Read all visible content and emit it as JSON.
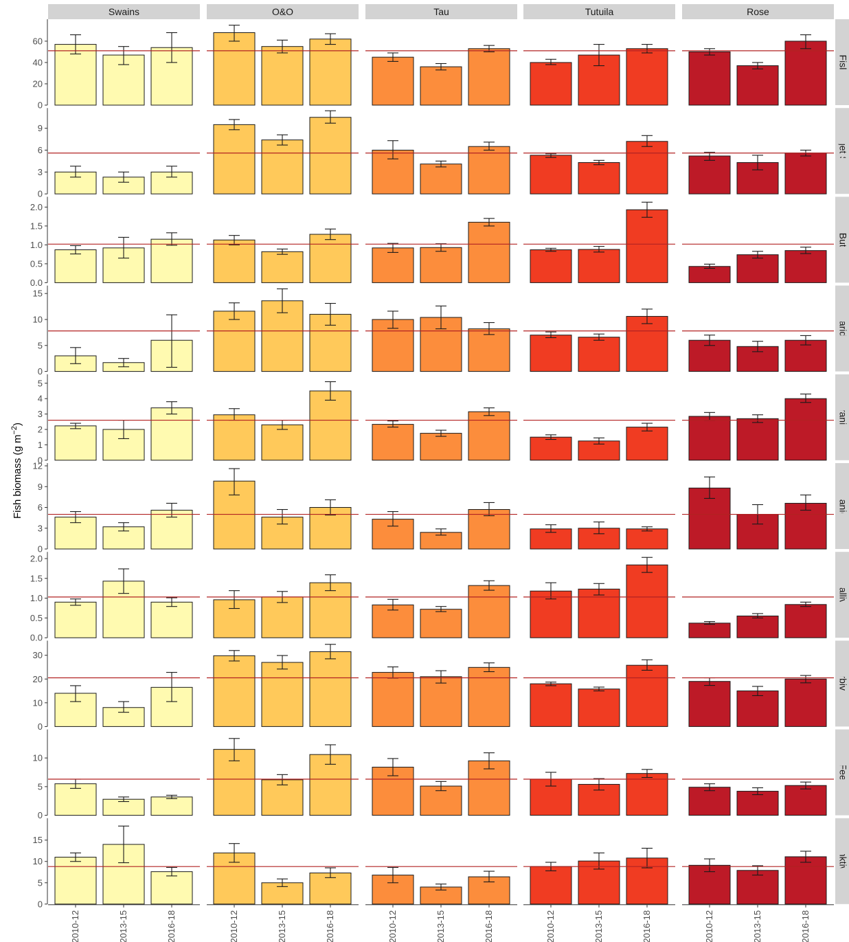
{
  "chart_data": {
    "type": "bar",
    "facet_layout": "grid",
    "ylabel": "Fish biomass (g m",
    "ylabel_superscript": "−2",
    "ylabel_close": ")",
    "regions": [
      "Swains",
      "O&O",
      "Tau",
      "Tutuila",
      "Rose"
    ],
    "categories": [
      "2010-12",
      "2013-15",
      "2016-18"
    ],
    "region_colors": [
      "#FFFAB0",
      "#FFC95A",
      "#FC8D3C",
      "#F03C22",
      "#BD1A27"
    ],
    "reference_line_color": "#B22222",
    "bar_edge_color": "#1a1a1a",
    "strip_color": "#D3D3D3",
    "rows": [
      {
        "label": "All Fishes",
        "ylim": [
          0,
          78
        ],
        "ticks": [
          0,
          20,
          40,
          60
        ],
        "tick_labels": [
          "0",
          "20",
          "40",
          "60"
        ],
        "reference": 51,
        "values": [
          [
            57,
            47,
            54
          ],
          [
            68,
            55,
            62
          ],
          [
            45,
            36,
            53
          ],
          [
            40,
            47,
            53
          ],
          [
            50,
            37,
            60
          ]
        ],
        "errors": [
          [
            [
              48,
              66
            ],
            [
              38,
              55
            ],
            [
              40,
              68
            ]
          ],
          [
            [
              60,
              75
            ],
            [
              49,
              61
            ],
            [
              57,
              67
            ]
          ],
          [
            [
              41,
              49
            ],
            [
              33,
              39
            ],
            [
              50,
              56
            ]
          ],
          [
            [
              38,
              43
            ],
            [
              37,
              57
            ],
            [
              49,
              57
            ]
          ],
          [
            [
              47,
              53
            ],
            [
              34,
              40
            ],
            [
              53,
              66
            ]
          ]
        ]
      },
      {
        "label": "l-Large Target Surgeonfish",
        "ylim": [
          0,
          11.4
        ],
        "ticks": [
          0,
          3,
          6,
          9
        ],
        "tick_labels": [
          "0",
          "3",
          "6",
          "9"
        ],
        "reference": 5.6,
        "values": [
          [
            3.0,
            2.3,
            3.0
          ],
          [
            9.5,
            7.4,
            10.5
          ],
          [
            6.0,
            4.1,
            6.5
          ],
          [
            5.3,
            4.3,
            7.2
          ],
          [
            5.2,
            4.3,
            5.6
          ]
        ],
        "errors": [
          [
            [
              2.3,
              3.8
            ],
            [
              1.6,
              3.0
            ],
            [
              2.3,
              3.8
            ]
          ],
          [
            [
              8.8,
              10.2
            ],
            [
              6.7,
              8.1
            ],
            [
              9.7,
              11.4
            ]
          ],
          [
            [
              4.8,
              7.3
            ],
            [
              3.7,
              4.5
            ],
            [
              6.0,
              7.1
            ]
          ],
          [
            [
              5.0,
              5.5
            ],
            [
              4.0,
              4.6
            ],
            [
              6.5,
              8.0
            ]
          ],
          [
            [
              4.6,
              5.7
            ],
            [
              3.3,
              5.3
            ],
            [
              5.2,
              6.0
            ]
          ]
        ]
      },
      {
        "label": "Non-PK Butterflyfish",
        "ylim": [
          0,
          2.2
        ],
        "ticks": [
          0,
          0.5,
          1.0,
          1.5,
          2.0
        ],
        "tick_labels": [
          "0.0",
          "0.5",
          "1.0",
          "1.5",
          "2.0"
        ],
        "reference": 1.02,
        "values": [
          [
            0.87,
            0.92,
            1.15
          ],
          [
            1.13,
            0.82,
            1.28
          ],
          [
            0.92,
            0.93,
            1.6
          ],
          [
            0.87,
            0.88,
            1.93
          ],
          [
            0.43,
            0.74,
            0.85
          ]
        ],
        "errors": [
          [
            [
              0.76,
              0.98
            ],
            [
              0.65,
              1.2
            ],
            [
              0.99,
              1.32
            ]
          ],
          [
            [
              1.0,
              1.25
            ],
            [
              0.75,
              0.89
            ],
            [
              1.14,
              1.42
            ]
          ],
          [
            [
              0.8,
              1.04
            ],
            [
              0.83,
              1.03
            ],
            [
              1.5,
              1.7
            ]
          ],
          [
            [
              0.83,
              0.91
            ],
            [
              0.81,
              0.96
            ],
            [
              1.73,
              2.13
            ]
          ],
          [
            [
              0.38,
              0.49
            ],
            [
              0.65,
              0.83
            ],
            [
              0.77,
              0.94
            ]
          ]
        ]
      },
      {
        "label": "Scaridae",
        "ylim": [
          0,
          16
        ],
        "ticks": [
          0,
          5,
          10,
          15
        ],
        "tick_labels": [
          "0",
          "5",
          "10",
          "15"
        ],
        "reference": 7.8,
        "values": [
          [
            3.0,
            1.7,
            6.0
          ],
          [
            11.6,
            13.6,
            11.0
          ],
          [
            10.0,
            10.4,
            8.2
          ],
          [
            7.0,
            6.6,
            10.6
          ],
          [
            6.0,
            4.8,
            6.0
          ]
        ],
        "errors": [
          [
            [
              1.5,
              4.6
            ],
            [
              0.9,
              2.5
            ],
            [
              0.8,
              10.9
            ]
          ],
          [
            [
              10.0,
              13.2
            ],
            [
              11.3,
              15.9
            ],
            [
              8.9,
              13.1
            ]
          ],
          [
            [
              8.3,
              11.6
            ],
            [
              8.2,
              12.6
            ],
            [
              7.1,
              9.4
            ]
          ],
          [
            [
              6.5,
              7.6
            ],
            [
              6.0,
              7.2
            ],
            [
              9.2,
              12.0
            ]
          ],
          [
            [
              5.0,
              7.0
            ],
            [
              3.8,
              5.8
            ],
            [
              5.1,
              6.9
            ]
          ]
        ]
      },
      {
        "label": "Serranidae",
        "ylim": [
          0,
          5.4
        ],
        "ticks": [
          0,
          1,
          2,
          3,
          4,
          5
        ],
        "tick_labels": [
          "0",
          "1",
          "2",
          "3",
          "4",
          "5"
        ],
        "reference": 2.6,
        "values": [
          [
            2.23,
            2.0,
            3.4
          ],
          [
            2.95,
            2.3,
            4.5
          ],
          [
            2.33,
            1.75,
            3.15
          ],
          [
            1.5,
            1.25,
            2.15
          ],
          [
            2.85,
            2.7,
            4.0
          ]
        ],
        "errors": [
          [
            [
              2.05,
              2.4
            ],
            [
              1.4,
              2.6
            ],
            [
              3.0,
              3.8
            ]
          ],
          [
            [
              2.6,
              3.35
            ],
            [
              2.0,
              2.6
            ],
            [
              3.9,
              5.1
            ]
          ],
          [
            [
              2.15,
              2.55
            ],
            [
              1.55,
              1.95
            ],
            [
              2.9,
              3.4
            ]
          ],
          [
            [
              1.35,
              1.65
            ],
            [
              1.05,
              1.45
            ],
            [
              1.9,
              2.4
            ]
          ],
          [
            [
              2.6,
              3.1
            ],
            [
              2.45,
              2.95
            ],
            [
              3.75,
              4.3
            ]
          ]
        ]
      },
      {
        "label": "Lutjanidae",
        "ylim": [
          0,
          12
        ],
        "ticks": [
          0,
          3,
          6,
          9,
          12
        ],
        "tick_labels": [
          "0",
          "3",
          "6",
          "9",
          "12"
        ],
        "reference": 5.0,
        "values": [
          [
            4.6,
            3.2,
            5.6
          ],
          [
            9.8,
            4.6,
            6.0
          ],
          [
            4.3,
            2.4,
            5.7
          ],
          [
            2.9,
            3.0,
            2.9
          ],
          [
            8.8,
            5.0,
            6.6
          ]
        ],
        "errors": [
          [
            [
              3.8,
              5.4
            ],
            [
              2.6,
              3.8
            ],
            [
              4.6,
              6.6
            ]
          ],
          [
            [
              7.8,
              11.6
            ],
            [
              3.6,
              5.7
            ],
            [
              4.9,
              7.1
            ]
          ],
          [
            [
              3.3,
              5.4
            ],
            [
              2.0,
              2.9
            ],
            [
              4.8,
              6.7
            ]
          ],
          [
            [
              2.4,
              3.5
            ],
            [
              2.2,
              3.9
            ],
            [
              2.6,
              3.2
            ]
          ],
          [
            [
              7.3,
              10.4
            ],
            [
              3.6,
              6.4
            ],
            [
              5.6,
              7.8
            ]
          ]
        ]
      },
      {
        "label": "Corallivore",
        "ylim": [
          0,
          2.1
        ],
        "ticks": [
          0,
          0.5,
          1.0,
          1.5,
          2.0
        ],
        "tick_labels": [
          "0.0",
          "0.5",
          "1.0",
          "1.5",
          "2.0"
        ],
        "reference": 1.03,
        "values": [
          [
            0.9,
            1.43,
            0.9
          ],
          [
            0.96,
            1.03,
            1.39
          ],
          [
            0.83,
            0.72,
            1.32
          ],
          [
            1.18,
            1.23,
            1.84
          ],
          [
            0.37,
            0.55,
            0.84
          ]
        ],
        "errors": [
          [
            [
              0.82,
              0.98
            ],
            [
              1.12,
              1.74
            ],
            [
              0.79,
              1.01
            ]
          ],
          [
            [
              0.74,
              1.19
            ],
            [
              0.89,
              1.17
            ],
            [
              1.19,
              1.59
            ]
          ],
          [
            [
              0.7,
              0.97
            ],
            [
              0.66,
              0.79
            ],
            [
              1.2,
              1.44
            ]
          ],
          [
            [
              0.98,
              1.39
            ],
            [
              1.08,
              1.37
            ],
            [
              1.65,
              2.03
            ]
          ],
          [
            [
              0.34,
              0.41
            ],
            [
              0.5,
              0.61
            ],
            [
              0.79,
              0.9
            ]
          ]
        ]
      },
      {
        "label": "Herbivore",
        "ylim": [
          0,
          35
        ],
        "ticks": [
          0,
          10,
          20,
          30
        ],
        "tick_labels": [
          "0",
          "10",
          "20",
          "30"
        ],
        "reference": 20.5,
        "values": [
          [
            14,
            8,
            16.5
          ],
          [
            29.8,
            27,
            31.5
          ],
          [
            22.8,
            21,
            24.9
          ],
          [
            18,
            15.8,
            25.8
          ],
          [
            19,
            15,
            20
          ]
        ],
        "errors": [
          [
            [
              10.5,
              17.2
            ],
            [
              6,
              10.5
            ],
            [
              10.5,
              22.8
            ]
          ],
          [
            [
              27.6,
              32
            ],
            [
              24.2,
              29.9
            ],
            [
              28.5,
              34.6
            ]
          ],
          [
            [
              20.4,
              25.1
            ],
            [
              18.3,
              23.5
            ],
            [
              23.1,
              26.8
            ]
          ],
          [
            [
              17.2,
              18.7
            ],
            [
              15,
              16.6
            ],
            [
              23.7,
              28.1
            ]
          ],
          [
            [
              17.3,
              20.5
            ],
            [
              13,
              16.9
            ],
            [
              18.4,
              21.5
            ]
          ]
        ]
      },
      {
        "label": "MI Feeder",
        "ylim": [
          0,
          14.5
        ],
        "ticks": [
          0,
          5,
          10
        ],
        "tick_labels": [
          "0",
          "5",
          "10"
        ],
        "reference": 6.3,
        "values": [
          [
            5.5,
            2.8,
            3.2
          ],
          [
            11.5,
            6.2,
            10.6
          ],
          [
            8.4,
            5.1,
            9.5
          ],
          [
            6.3,
            5.4,
            7.3
          ],
          [
            4.9,
            4.2,
            5.2
          ]
        ],
        "errors": [
          [
            [
              4.7,
              6.3
            ],
            [
              2.4,
              3.2
            ],
            [
              2.9,
              3.5
            ]
          ],
          [
            [
              9.5,
              13.4
            ],
            [
              5.3,
              7.1
            ],
            [
              8.9,
              12.3
            ]
          ],
          [
            [
              6.9,
              9.9
            ],
            [
              4.3,
              5.9
            ],
            [
              8.1,
              10.9
            ]
          ],
          [
            [
              5.1,
              7.5
            ],
            [
              4.4,
              6.4
            ],
            [
              6.6,
              8.0
            ]
          ],
          [
            [
              4.3,
              5.5
            ],
            [
              3.6,
              4.8
            ],
            [
              4.6,
              5.8
            ]
          ]
        ]
      },
      {
        "label": "Planktivore",
        "ylim": [
          0,
          19.5
        ],
        "ticks": [
          0,
          5,
          10,
          15
        ],
        "tick_labels": [
          "0",
          "5",
          "10",
          "15"
        ],
        "reference": 8.8,
        "values": [
          [
            11,
            14,
            7.6
          ],
          [
            12,
            5,
            7.3
          ],
          [
            6.8,
            4.0,
            6.4
          ],
          [
            8.8,
            10.1,
            10.8
          ],
          [
            9.1,
            7.9,
            11.1
          ]
        ],
        "errors": [
          [
            [
              10,
              12
            ],
            [
              9.7,
              18.3
            ],
            [
              6.6,
              8.6
            ]
          ],
          [
            [
              9.8,
              14.2
            ],
            [
              4.1,
              5.9
            ],
            [
              6.2,
              8.5
            ]
          ],
          [
            [
              5.0,
              8.6
            ],
            [
              3.3,
              4.7
            ],
            [
              5.2,
              7.7
            ]
          ],
          [
            [
              7.8,
              9.8
            ],
            [
              8.2,
              12.0
            ],
            [
              8.5,
              13.1
            ]
          ],
          [
            [
              7.6,
              10.6
            ],
            [
              6.8,
              9.0
            ],
            [
              9.8,
              12.4
            ]
          ]
        ]
      }
    ]
  }
}
